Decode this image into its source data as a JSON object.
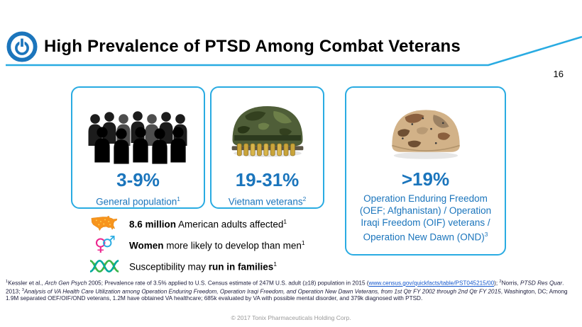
{
  "header": {
    "title": "High Prevalence of PTSD Among Combat Veterans",
    "page_number": "16"
  },
  "stats": [
    {
      "value": "3-9%",
      "label": "General population",
      "sup": "1",
      "image": "crowd-silhouette"
    },
    {
      "value": "19-31%",
      "label": "Vietnam veterans",
      "sup": "2",
      "image": "vietnam-helmet"
    },
    {
      "value": ">19%",
      "label": "Operation Enduring Freedom (OEF; Afghanistan) / Operation Iraqi Freedom (OIF) veterans / Operation New Dawn (OND)",
      "sup": "3",
      "image": "desert-helmet"
    }
  ],
  "facts": [
    {
      "icon": "usa-map-icon",
      "prefix": "",
      "bold": "8.6 million",
      "suffix": " American adults affected",
      "sup": "1"
    },
    {
      "icon": "gender-symbols-icon",
      "prefix": "",
      "bold": "Women",
      "suffix": " more likely to develop than men",
      "sup": "1"
    },
    {
      "icon": "dna-icon",
      "prefix": "Susceptibility may ",
      "bold": "run in families",
      "suffix": "",
      "sup": "1"
    }
  ],
  "footnotes": {
    "segments": [
      {
        "t": "1",
        "sup": true
      },
      {
        "t": "Kessler et al., "
      },
      {
        "t": "Arch Gen Psych",
        "italic": true
      },
      {
        "t": " 2005; Prevalence rate of 3.5% applied to U.S. Census estimate of 247M U.S. adult (≥18) population in 2015 ("
      },
      {
        "t": "www.census.gov/quickfacts/table/PST045215/00",
        "link": true
      },
      {
        "t": ");  "
      },
      {
        "t": "2",
        "sup": true
      },
      {
        "t": "Norris, "
      },
      {
        "t": "PTSD Res Quar",
        "italic": true
      },
      {
        "t": ". 2013;  "
      },
      {
        "t": "3",
        "sup": true
      },
      {
        "t": "Analysis of VA Health Care Utilization among Operation Enduring Freedom, Operation Iraqi Freedom, and Operation New Dawn Veterans, from 1st Qtr FY 2002 through 2nd Qtr FY 2015",
        "italic": true
      },
      {
        "t": ", Washington, DC; Among 1.9M separated OEF/OIF/OND veterans, 1.2M have obtained VA healthcare; 685k evaluated by VA with possible mental disorder, and 379k diagnosed with PTSD."
      }
    ]
  },
  "footer": {
    "copyright": "© 2017 Tonix Pharmaceuticals Holding Corp."
  },
  "colors": {
    "accent": "#29ABE2",
    "stat_blue": "#1B75BC",
    "link_blue": "#1155CC",
    "map_orange": "#F7941D",
    "female_pink": "#EC268F",
    "male_blue": "#29ABE2"
  }
}
